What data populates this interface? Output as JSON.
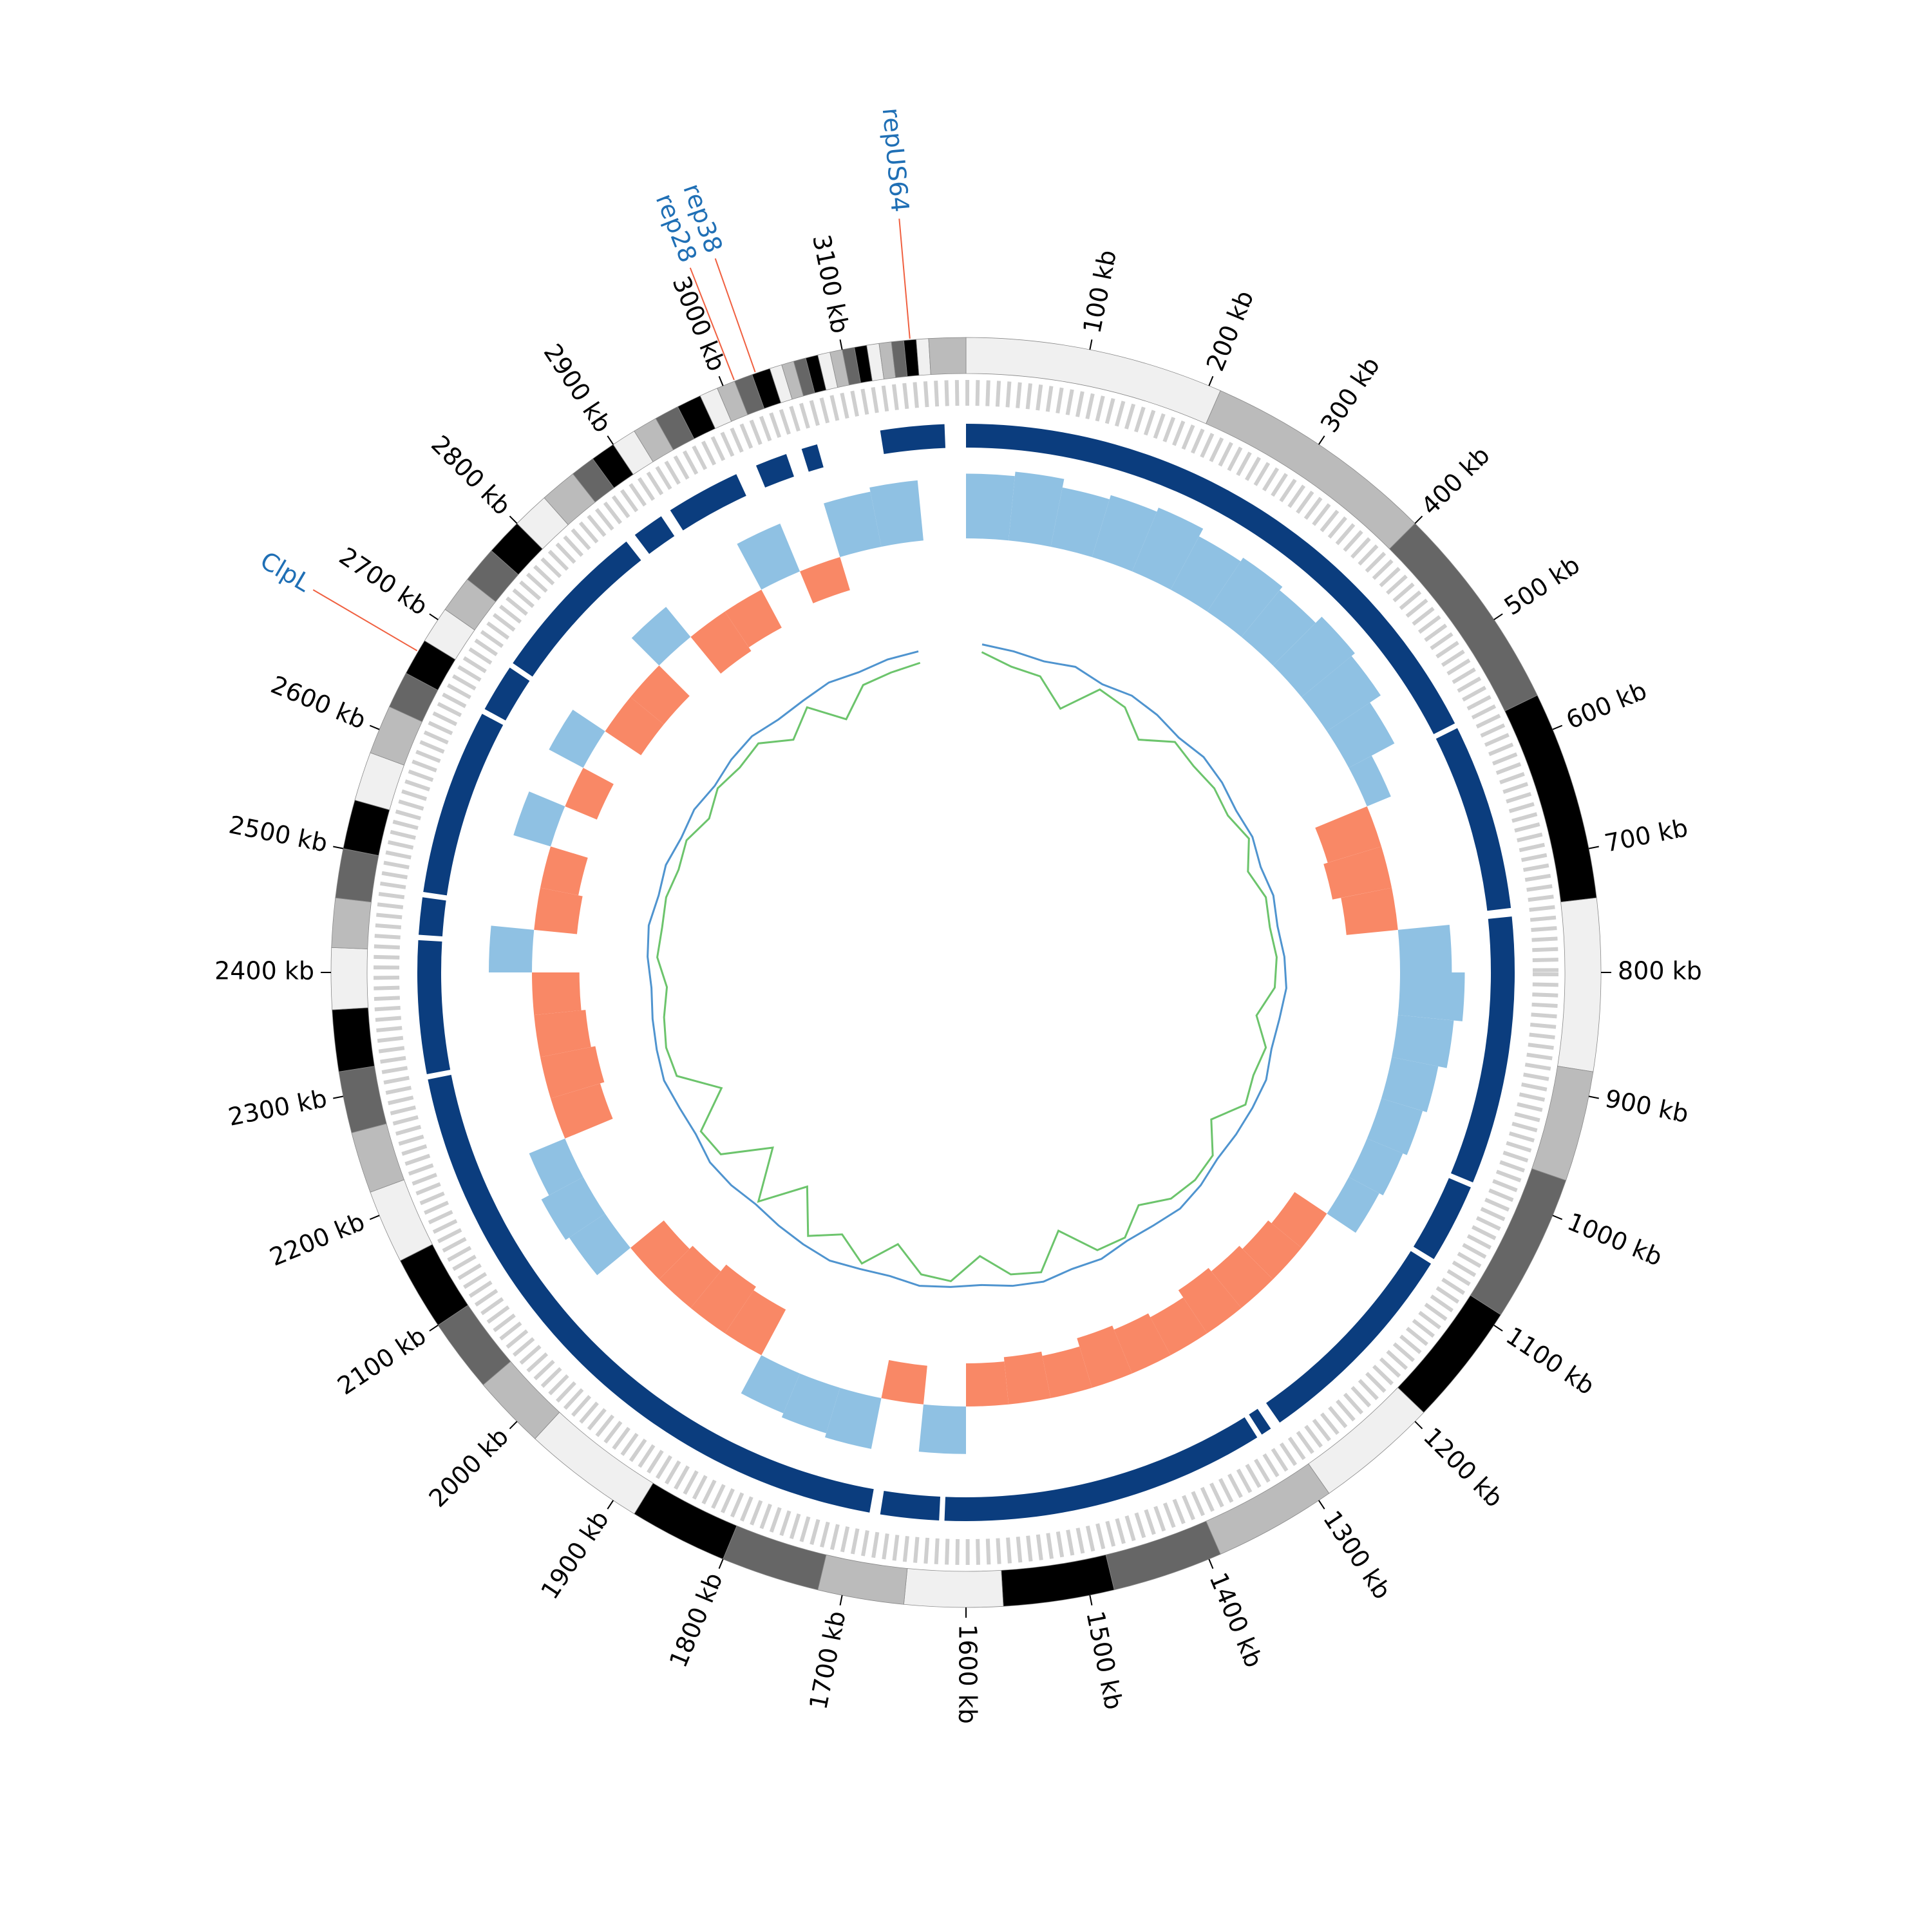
{
  "chart_data": {
    "type": "circos",
    "xlim": [
      0,
      3200
    ],
    "xticks": [
      {
        "value": 100,
        "label": "100 kb"
      },
      {
        "value": 200,
        "label": "200 kb"
      },
      {
        "value": 300,
        "label": "300 kb"
      },
      {
        "value": 400,
        "label": "400 kb"
      },
      {
        "value": 500,
        "label": "500 kb"
      },
      {
        "value": 600,
        "label": "600 kb"
      },
      {
        "value": 700,
        "label": "700 kb"
      },
      {
        "value": 800,
        "label": "800 kb"
      },
      {
        "value": 900,
        "label": "900 kb"
      },
      {
        "value": 1000,
        "label": "1000 kb"
      },
      {
        "value": 1100,
        "label": "1100 kb"
      },
      {
        "value": 1200,
        "label": "1200 kb"
      },
      {
        "value": 1300,
        "label": "1300 kb"
      },
      {
        "value": 1400,
        "label": "1400 kb"
      },
      {
        "value": 1500,
        "label": "1500 kb"
      },
      {
        "value": 1600,
        "label": "1600 kb"
      },
      {
        "value": 1700,
        "label": "1700 kb"
      },
      {
        "value": 1800,
        "label": "1800 kb"
      },
      {
        "value": 1900,
        "label": "1900 kb"
      },
      {
        "value": 2000,
        "label": "2000 kb"
      },
      {
        "value": 2100,
        "label": "2100 kb"
      },
      {
        "value": 2200,
        "label": "2200 kb"
      },
      {
        "value": 2300,
        "label": "2300 kb"
      },
      {
        "value": 2400,
        "label": "2400 kb"
      },
      {
        "value": 2500,
        "label": "2500 kb"
      },
      {
        "value": 2600,
        "label": "2600 kb"
      },
      {
        "value": 2700,
        "label": "2700 kb"
      },
      {
        "value": 2800,
        "label": "2800 kb"
      },
      {
        "value": 2900,
        "label": "2900 kb"
      },
      {
        "value": 3000,
        "label": "3000 kb"
      },
      {
        "value": 3100,
        "label": "3100 kb"
      }
    ],
    "ideogram": {
      "colors": [
        "#f0f0f0",
        "#bbbbbb",
        "#666666",
        "#000000"
      ],
      "bands": [
        [
          0,
          210
        ],
        [
          210,
          400
        ],
        [
          400,
          570
        ],
        [
          570,
          740
        ],
        [
          740,
          880
        ],
        [
          880,
          970
        ],
        [
          970,
          1090
        ],
        [
          1090,
          1190
        ],
        [
          1190,
          1290
        ],
        [
          1290,
          1390
        ],
        [
          1390,
          1480
        ],
        [
          1480,
          1570
        ],
        [
          1570,
          1650
        ],
        [
          1650,
          1720
        ],
        [
          1720,
          1800
        ],
        [
          1800,
          1880
        ],
        [
          1880,
          1980
        ],
        [
          1980,
          2040
        ],
        [
          2040,
          2100
        ],
        [
          2100,
          2160
        ],
        [
          2160,
          2220
        ],
        [
          2220,
          2270
        ],
        [
          2270,
          2320
        ],
        [
          2320,
          2370
        ],
        [
          2370,
          2420
        ],
        [
          2420,
          2460
        ],
        [
          2460,
          2500
        ],
        [
          2500,
          2540
        ],
        [
          2540,
          2580
        ],
        [
          2580,
          2620
        ],
        [
          2620,
          2650
        ],
        [
          2650,
          2680
        ],
        [
          2680,
          2710
        ],
        [
          2710,
          2740
        ],
        [
          2740,
          2770
        ],
        [
          2770,
          2800
        ],
        [
          2800,
          2830
        ],
        [
          2830,
          2860
        ],
        [
          2860,
          2880
        ],
        [
          2880,
          2900
        ],
        [
          2900,
          2920
        ],
        [
          2920,
          2940
        ],
        [
          2940,
          2960
        ],
        [
          2960,
          2980
        ],
        [
          2980,
          2995
        ],
        [
          2995,
          3010
        ],
        [
          3010,
          3025
        ],
        [
          3025,
          3040
        ],
        [
          3040,
          3050
        ],
        [
          3050,
          3060
        ],
        [
          3060,
          3070
        ],
        [
          3070,
          3080
        ],
        [
          3080,
          3090
        ],
        [
          3090,
          3100
        ],
        [
          3100,
          3110
        ],
        [
          3110,
          3120
        ],
        [
          3120,
          3130
        ],
        [
          3130,
          3140
        ],
        [
          3140,
          3150
        ],
        [
          3150,
          3160
        ],
        [
          3160,
          3170
        ],
        [
          3170,
          3200
        ]
      ]
    },
    "contigs": {
      "color": "#0b3d7e",
      "segments": [
        [
          0,
          560
        ],
        [
          565,
          740
        ],
        [
          748,
          1000
        ],
        [
          1005,
          1080
        ],
        [
          1085,
          1290
        ],
        [
          1300,
          1310
        ],
        [
          1315,
          1620
        ],
        [
          1625,
          1680
        ],
        [
          1690,
          2300
        ],
        [
          2305,
          2430
        ],
        [
          2435,
          2470
        ],
        [
          2475,
          2650
        ],
        [
          2655,
          2700
        ],
        [
          2705,
          2860
        ],
        [
          2870,
          2900
        ],
        [
          2910,
          2980
        ],
        [
          3000,
          3030
        ],
        [
          3045,
          3060
        ],
        [
          3120,
          3180
        ]
      ]
    },
    "bins": [
      0,
      50,
      100,
      150,
      200,
      250,
      300,
      350,
      400,
      450,
      500,
      550,
      600,
      650,
      700,
      750,
      800,
      850,
      900,
      950,
      1000,
      1050,
      1100,
      1150,
      1200,
      1250,
      1300,
      1350,
      1400,
      1450,
      1500,
      1550,
      1600,
      1650,
      1700,
      1750,
      1800,
      1850,
      1900,
      1950,
      2000,
      2050,
      2100,
      2150,
      2200,
      2250,
      2300,
      2350,
      2400,
      2450,
      2500,
      2550,
      2600,
      2650,
      2700,
      2750,
      2800,
      2850,
      2900,
      2950,
      3000,
      3050,
      3100,
      3150,
      3200
    ],
    "histogram": {
      "ylim": [
        -1,
        1
      ],
      "pos_color": "#8fc1e3",
      "neg_color": "#f98866",
      "values": [
        0.75,
        0.8,
        0.7,
        0.75,
        0.8,
        0.7,
        0.75,
        0.7,
        0.8,
        0.75,
        0.6,
        0.3,
        -0.65,
        -0.7,
        -0.6,
        0.6,
        0.75,
        0.65,
        0.55,
        0.5,
        0.45,
        0.4,
        -0.45,
        -0.5,
        -0.55,
        -0.6,
        -0.5,
        -0.55,
        -0.6,
        -0.5,
        -0.55,
        -0.5,
        0.55,
        -0.45,
        0.6,
        0.55,
        0.5,
        -0.6,
        -0.65,
        -0.55,
        -0.5,
        0.5,
        0.55,
        0.45,
        -0.6,
        -0.65,
        -0.6,
        -0.55,
        0.5,
        -0.5,
        -0.45,
        0.45,
        -0.4,
        0.45,
        -0.5,
        -0.5,
        0.45,
        -0.55,
        -0.5,
        0.6,
        -0.4,
        0.65,
        0.7,
        null
      ]
    },
    "lines": {
      "ylim": [
        0,
        1
      ],
      "series": [
        {
          "color": "#4f94cf",
          "values": [
            0.7,
            0.68,
            0.66,
            0.68,
            0.65,
            0.67,
            0.66,
            0.64,
            0.66,
            0.65,
            0.63,
            0.64,
            0.62,
            0.64,
            0.63,
            0.65,
            0.66,
            0.64,
            0.63,
            0.65,
            0.64,
            0.63,
            0.62,
            0.64,
            0.65,
            0.63,
            0.62,
            0.64,
            0.63,
            0.65,
            0.64,
            0.62,
            0.63,
            0.64,
            0.62,
            0.63,
            0.65,
            0.64,
            0.63,
            0.62,
            0.64,
            0.65,
            0.63,
            0.64,
            0.66,
            0.65,
            0.64,
            0.63,
            0.65,
            0.66,
            0.64,
            0.65,
            0.63,
            0.64,
            0.62,
            0.64,
            0.65,
            0.63,
            0.64,
            0.66,
            0.65,
            0.67,
            0.68,
            null
          ]
        },
        {
          "color": "#6cc46c",
          "values": [
            0.66,
            0.6,
            0.58,
            0.45,
            0.62,
            0.6,
            0.5,
            0.61,
            0.59,
            0.6,
            0.58,
            0.62,
            0.55,
            0.6,
            0.59,
            0.61,
            0.6,
            0.52,
            0.6,
            0.58,
            0.6,
            0.48,
            0.59,
            0.6,
            0.58,
            0.5,
            0.6,
            0.59,
            0.42,
            0.6,
            0.58,
            0.47,
            0.6,
            0.58,
            0.45,
            0.6,
            0.5,
            0.59,
            0.38,
            0.6,
            0.35,
            0.58,
            0.6,
            0.4,
            0.59,
            0.6,
            0.58,
            0.55,
            0.6,
            0.59,
            0.6,
            0.58,
            0.6,
            0.55,
            0.6,
            0.58,
            0.6,
            0.5,
            0.6,
            0.45,
            0.58,
            0.6,
            0.62,
            null
          ]
        }
      ]
    },
    "annotation_color": "#1f6fb5",
    "annotation_line_color": "#f06040",
    "annotations": [
      {
        "label": "repUS64",
        "position": 3155
      },
      {
        "label": "rep38",
        "position": 3028
      },
      {
        "label": "rep28",
        "position": 3010
      },
      {
        "label": "ClpL",
        "position": 2670
      }
    ]
  }
}
